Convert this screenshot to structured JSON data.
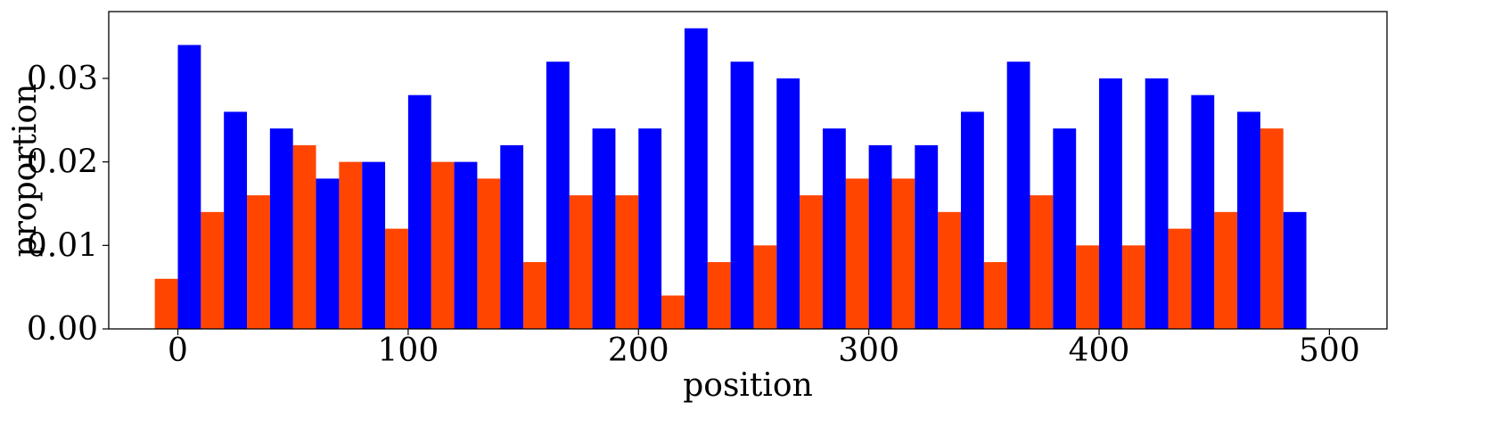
{
  "chart_data": {
    "type": "bar",
    "xlabel": "position",
    "ylabel": "proportion",
    "xlim": [
      -30,
      525
    ],
    "ylim": [
      0,
      0.038
    ],
    "grid": false,
    "bin_width": 20,
    "bin_starts": [
      0,
      20,
      40,
      60,
      80,
      100,
      120,
      140,
      160,
      180,
      200,
      220,
      240,
      260,
      280,
      300,
      320,
      340,
      360,
      380,
      400,
      420,
      440,
      460,
      480
    ],
    "x_ticks": [
      0,
      100,
      200,
      300,
      400,
      500
    ],
    "x_tick_labels": [
      "0",
      "100",
      "200",
      "300",
      "400",
      "500"
    ],
    "y_ticks": [
      0,
      0.01,
      0.02,
      0.03
    ],
    "y_tick_labels": [
      "0.00",
      "0.01",
      "0.02",
      "0.03"
    ],
    "series": [
      {
        "color": "#ff4500",
        "values": [
          0.006,
          0.014,
          0.016,
          0.022,
          0.02,
          0.012,
          0.02,
          0.018,
          0.008,
          0.016,
          0.016,
          0.004,
          0.008,
          0.01,
          0.016,
          0.018,
          0.018,
          0.014,
          0.008,
          0.016,
          0.01,
          0.01,
          0.012,
          0.014,
          0.024
        ]
      },
      {
        "color": "#0000ff",
        "values": [
          0.034,
          0.026,
          0.024,
          0.018,
          0.02,
          0.028,
          0.02,
          0.022,
          0.032,
          0.024,
          0.024,
          0.036,
          0.032,
          0.03,
          0.024,
          0.022,
          0.022,
          0.026,
          0.032,
          0.024,
          0.03,
          0.03,
          0.028,
          0.026,
          0.014
        ]
      }
    ]
  }
}
